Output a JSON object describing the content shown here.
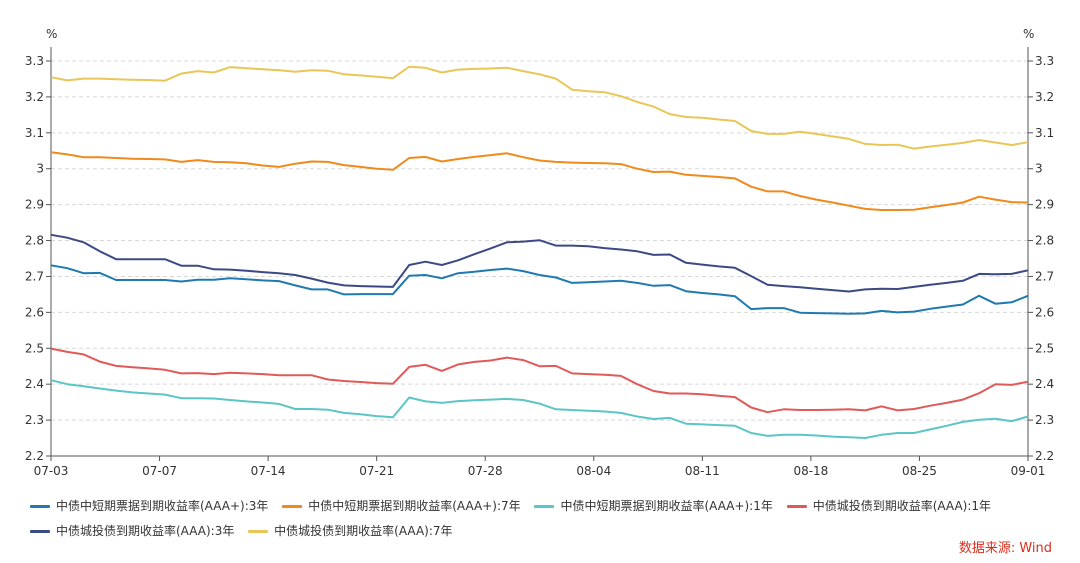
{
  "chart_data": {
    "type": "line",
    "title": "",
    "y_unit_left": "%",
    "y_unit_right": "%",
    "ylim": [
      2.2,
      3.3
    ],
    "yticks": [
      "2.2",
      "2.3",
      "2.4",
      "2.5",
      "2.6",
      "2.7",
      "2.8",
      "2.9",
      "3",
      "3.1",
      "3.2",
      "3.3"
    ],
    "xticks": [
      "07-03",
      "07-07",
      "07-14",
      "07-21",
      "07-28",
      "08-04",
      "08-11",
      "08-18",
      "08-25",
      "09-01"
    ],
    "series": [
      {
        "name": "中债中短期票据到期收益率(AAA+):3年",
        "color": "#1f7ab0",
        "values": [
          2.731,
          2.723,
          2.709,
          2.71,
          2.69,
          2.69,
          2.69,
          2.69,
          2.686,
          2.691,
          2.691,
          2.695,
          2.692,
          2.689,
          2.687,
          2.675,
          2.664,
          2.664,
          2.65,
          2.651,
          2.651,
          2.651,
          2.702,
          2.704,
          2.695,
          2.709,
          2.713,
          2.718,
          2.722,
          2.715,
          2.704,
          2.697,
          2.682,
          2.684,
          2.686,
          2.688,
          2.682,
          2.674,
          2.676,
          2.659,
          2.654,
          2.65,
          2.645,
          2.609,
          2.612,
          2.612,
          2.599,
          2.598,
          2.597,
          2.596,
          2.597,
          2.604,
          2.6,
          2.602,
          2.61,
          2.616,
          2.622,
          2.646,
          2.624,
          2.628,
          2.646
        ]
      },
      {
        "name": "中债中短期票据到期收益率(AAA+):7年",
        "color": "#f08a1c",
        "values": [
          3.046,
          3.04,
          3.032,
          3.032,
          3.03,
          3.028,
          3.027,
          3.026,
          3.019,
          3.024,
          3.019,
          3.018,
          3.015,
          3.009,
          3.005,
          3.014,
          3.02,
          3.019,
          3.01,
          3.005,
          3.0,
          2.997,
          3.03,
          3.033,
          3.02,
          3.027,
          3.033,
          3.038,
          3.043,
          3.032,
          3.023,
          3.019,
          3.017,
          3.016,
          3.015,
          3.013,
          3.0,
          2.991,
          2.992,
          2.983,
          2.98,
          2.977,
          2.973,
          2.95,
          2.937,
          2.937,
          2.924,
          2.914,
          2.906,
          2.897,
          2.888,
          2.885,
          2.885,
          2.886,
          2.893,
          2.899,
          2.906,
          2.922,
          2.914,
          2.907,
          2.906
        ]
      },
      {
        "name": "中债中短期票据到期收益率(AAA+):1年",
        "color": "#5cc5c5",
        "values": [
          2.411,
          2.4,
          2.394,
          2.388,
          2.382,
          2.377,
          2.374,
          2.371,
          2.361,
          2.361,
          2.36,
          2.356,
          2.352,
          2.349,
          2.345,
          2.331,
          2.331,
          2.329,
          2.32,
          2.316,
          2.311,
          2.308,
          2.363,
          2.352,
          2.348,
          2.353,
          2.355,
          2.357,
          2.359,
          2.356,
          2.346,
          2.33,
          2.328,
          2.326,
          2.324,
          2.32,
          2.31,
          2.303,
          2.306,
          2.29,
          2.288,
          2.286,
          2.284,
          2.264,
          2.256,
          2.259,
          2.259,
          2.257,
          2.254,
          2.252,
          2.25,
          2.259,
          2.264,
          2.264,
          2.274,
          2.284,
          2.295,
          2.301,
          2.304,
          2.297,
          2.31
        ]
      },
      {
        "name": "中债城投债到期收益率(AAA):1年",
        "color": "#e05a5a",
        "values": [
          2.499,
          2.49,
          2.483,
          2.463,
          2.451,
          2.447,
          2.444,
          2.44,
          2.43,
          2.431,
          2.428,
          2.432,
          2.43,
          2.428,
          2.425,
          2.425,
          2.425,
          2.413,
          2.409,
          2.406,
          2.403,
          2.401,
          2.448,
          2.454,
          2.437,
          2.455,
          2.462,
          2.466,
          2.474,
          2.467,
          2.45,
          2.451,
          2.43,
          2.428,
          2.426,
          2.423,
          2.4,
          2.381,
          2.374,
          2.374,
          2.372,
          2.368,
          2.364,
          2.335,
          2.322,
          2.33,
          2.328,
          2.328,
          2.329,
          2.33,
          2.327,
          2.338,
          2.327,
          2.331,
          2.34,
          2.348,
          2.357,
          2.375,
          2.4,
          2.398,
          2.407
        ]
      },
      {
        "name": "中债城投债到期收益率(AAA):3年",
        "color": "#3b4a85",
        "values": [
          2.816,
          2.808,
          2.795,
          2.77,
          2.748,
          2.748,
          2.748,
          2.748,
          2.73,
          2.73,
          2.72,
          2.719,
          2.716,
          2.712,
          2.709,
          2.704,
          2.694,
          2.683,
          2.675,
          2.673,
          2.672,
          2.671,
          2.732,
          2.741,
          2.732,
          2.745,
          2.762,
          2.778,
          2.795,
          2.797,
          2.801,
          2.786,
          2.786,
          2.784,
          2.779,
          2.775,
          2.77,
          2.76,
          2.761,
          2.738,
          2.733,
          2.728,
          2.724,
          2.701,
          2.677,
          2.673,
          2.67,
          2.666,
          2.662,
          2.658,
          2.664,
          2.666,
          2.665,
          2.671,
          2.677,
          2.682,
          2.688,
          2.707,
          2.706,
          2.707,
          2.717
        ]
      },
      {
        "name": "中债城投债到期收益率(AAA):7年",
        "color": "#e8c657",
        "values": [
          3.255,
          3.246,
          3.251,
          3.251,
          3.249,
          3.248,
          3.247,
          3.245,
          3.265,
          3.272,
          3.268,
          3.283,
          3.28,
          3.277,
          3.274,
          3.27,
          3.274,
          3.273,
          3.263,
          3.26,
          3.256,
          3.252,
          3.284,
          3.281,
          3.268,
          3.276,
          3.278,
          3.279,
          3.281,
          3.272,
          3.263,
          3.251,
          3.22,
          3.216,
          3.213,
          3.202,
          3.186,
          3.173,
          3.152,
          3.144,
          3.142,
          3.137,
          3.133,
          3.105,
          3.097,
          3.097,
          3.103,
          3.097,
          3.09,
          3.083,
          3.069,
          3.066,
          3.067,
          3.056,
          3.062,
          3.067,
          3.072,
          3.08,
          3.073,
          3.066,
          3.074
        ]
      }
    ],
    "legend_position": "bottom",
    "grid": true
  },
  "source_label": "数据来源: Wind"
}
